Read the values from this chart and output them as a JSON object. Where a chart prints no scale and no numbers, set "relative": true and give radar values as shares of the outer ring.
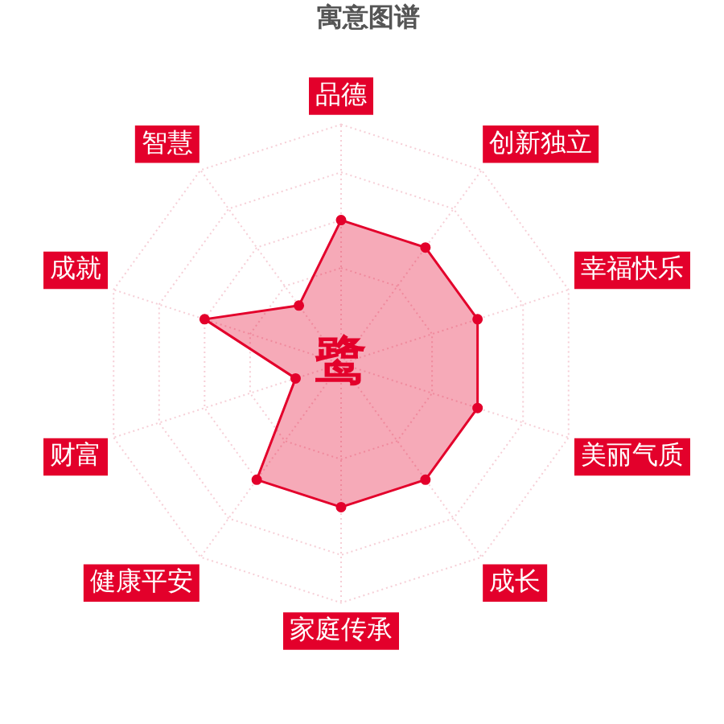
{
  "chart_data": {
    "type": "radar",
    "title": "寓意图谱",
    "categories": [
      "品德",
      "创新独立",
      "幸福快乐",
      "美丽气质",
      "成长",
      "家庭传承",
      "健康平安",
      "财富",
      "成就",
      "智慧"
    ],
    "series": [
      {
        "color": "#e3002b",
        "values": [
          0.6,
          0.6,
          0.6,
          0.6,
          0.6,
          0.6,
          0.6,
          0.2,
          0.6,
          0.3
        ]
      }
    ],
    "relative": true,
    "grid": true,
    "marker": "circle",
    "annotations": [
      "鹭"
    ]
  }
}
